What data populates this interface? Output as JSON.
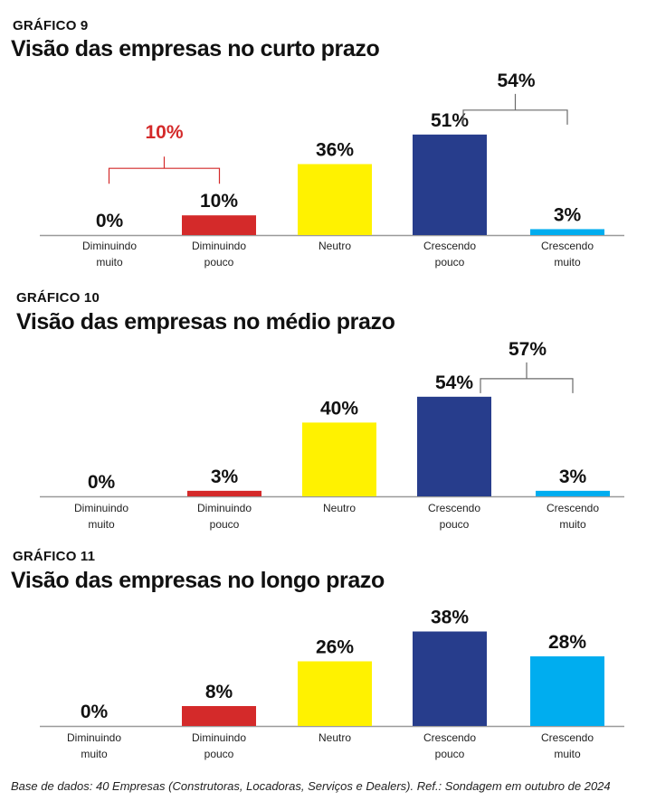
{
  "chart_data": [
    {
      "type": "bar",
      "kicker": "GRÁFICO 9",
      "title": "Visão das empresas no curto prazo",
      "categories": [
        [
          "Diminuindo",
          "muito"
        ],
        [
          "Diminuindo",
          "pouco"
        ],
        [
          "Neutro"
        ],
        [
          "Crescendo",
          "pouco"
        ],
        [
          "Crescendo",
          "muito"
        ]
      ],
      "values": [
        0,
        10,
        36,
        51,
        3
      ],
      "value_labels": [
        "0%",
        "10%",
        "36%",
        "51%",
        "3%"
      ],
      "colors": [
        "#d42a2a",
        "#d42a2a",
        "#fff200",
        "#273d8c",
        "#00adef"
      ],
      "brackets": [
        {
          "from": 0,
          "to": 1,
          "label": "10%",
          "color": "#d42a2a"
        },
        {
          "from": 3,
          "to": 4,
          "label": "54%",
          "color": "#111111"
        }
      ],
      "ylim": [
        0,
        60
      ]
    },
    {
      "type": "bar",
      "kicker": "GRÁFICO 10",
      "title": "Visão das empresas no médio prazo",
      "categories": [
        [
          "Diminuindo",
          "muito"
        ],
        [
          "Diminuindo",
          "pouco"
        ],
        [
          "Neutro"
        ],
        [
          "Crescendo",
          "pouco"
        ],
        [
          "Crescendo",
          "muito"
        ]
      ],
      "values": [
        0,
        3,
        40,
        54,
        3
      ],
      "value_labels": [
        "0%",
        "3%",
        "40%",
        "54%",
        "3%"
      ],
      "colors": [
        "#d42a2a",
        "#d42a2a",
        "#fff200",
        "#273d8c",
        "#00adef"
      ],
      "brackets": [
        {
          "from": 3,
          "to": 4,
          "label": "57%",
          "color": "#111111"
        }
      ],
      "ylim": [
        0,
        60
      ]
    },
    {
      "type": "bar",
      "kicker": "GRÁFICO 11",
      "title": "Visão das empresas no longo prazo",
      "categories": [
        [
          "Diminuindo",
          "muito"
        ],
        [
          "Diminuindo",
          "pouco"
        ],
        [
          "Neutro"
        ],
        [
          "Crescendo",
          "pouco"
        ],
        [
          "Crescendo",
          "muito"
        ]
      ],
      "values": [
        0,
        8,
        26,
        38,
        28
      ],
      "value_labels": [
        "0%",
        "8%",
        "26%",
        "38%",
        "28%"
      ],
      "colors": [
        "#d42a2a",
        "#d42a2a",
        "#fff200",
        "#273d8c",
        "#00adef"
      ],
      "brackets": [],
      "ylim": [
        0,
        45
      ]
    }
  ],
  "footnote": "Base de dados: 40 Empresas (Construtoras, Locadoras, Serviços e Dealers). Ref.: Sondagem em outubro de 2024"
}
